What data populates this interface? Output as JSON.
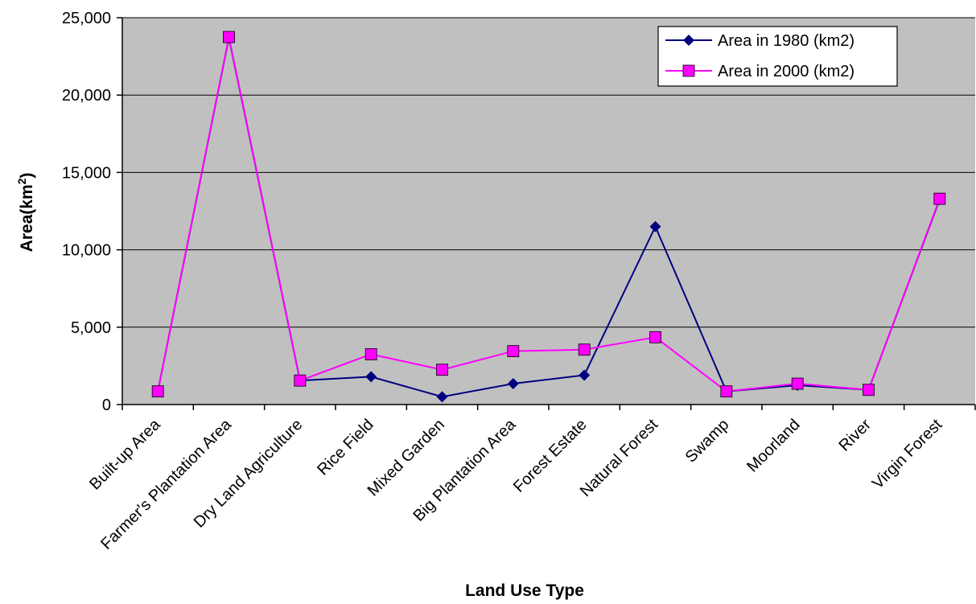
{
  "chart_data": {
    "type": "line",
    "title": "",
    "xlabel": "Land Use Type",
    "ylabel": "Area(km",
    "ylabel_sup": "2",
    "ylabel_close": ")",
    "ylim": [
      0,
      25000
    ],
    "yticks": [
      0,
      5000,
      10000,
      15000,
      20000,
      25000
    ],
    "ytick_labels": [
      "0",
      "5,000",
      "10,000",
      "15,000",
      "20,000",
      "25,000"
    ],
    "grid": true,
    "legend_position": "top-right",
    "plot_background": "#c0c0c0",
    "categories": [
      "Built-up Area",
      "Farmer's Plantation Area",
      "Dry Land Agriculture",
      "Rice Field",
      "Mixed Garden",
      "Big Plantation Area",
      "Forest Estate",
      "Natural Forest",
      "Swamp",
      "Moorland",
      "River",
      "Virgin Forest"
    ],
    "series": [
      {
        "name": "Area in 1980 (km2)",
        "color": "#000080",
        "marker": "diamond",
        "values": [
          850,
          23700,
          1550,
          1800,
          500,
          1350,
          1900,
          11500,
          850,
          1250,
          950,
          13250
        ]
      },
      {
        "name": "Area in 2000 (km2)",
        "color": "#ff00ff",
        "marker": "square",
        "values": [
          850,
          23750,
          1550,
          3250,
          2250,
          3450,
          3550,
          4350,
          850,
          1350,
          950,
          13300
        ]
      }
    ]
  }
}
